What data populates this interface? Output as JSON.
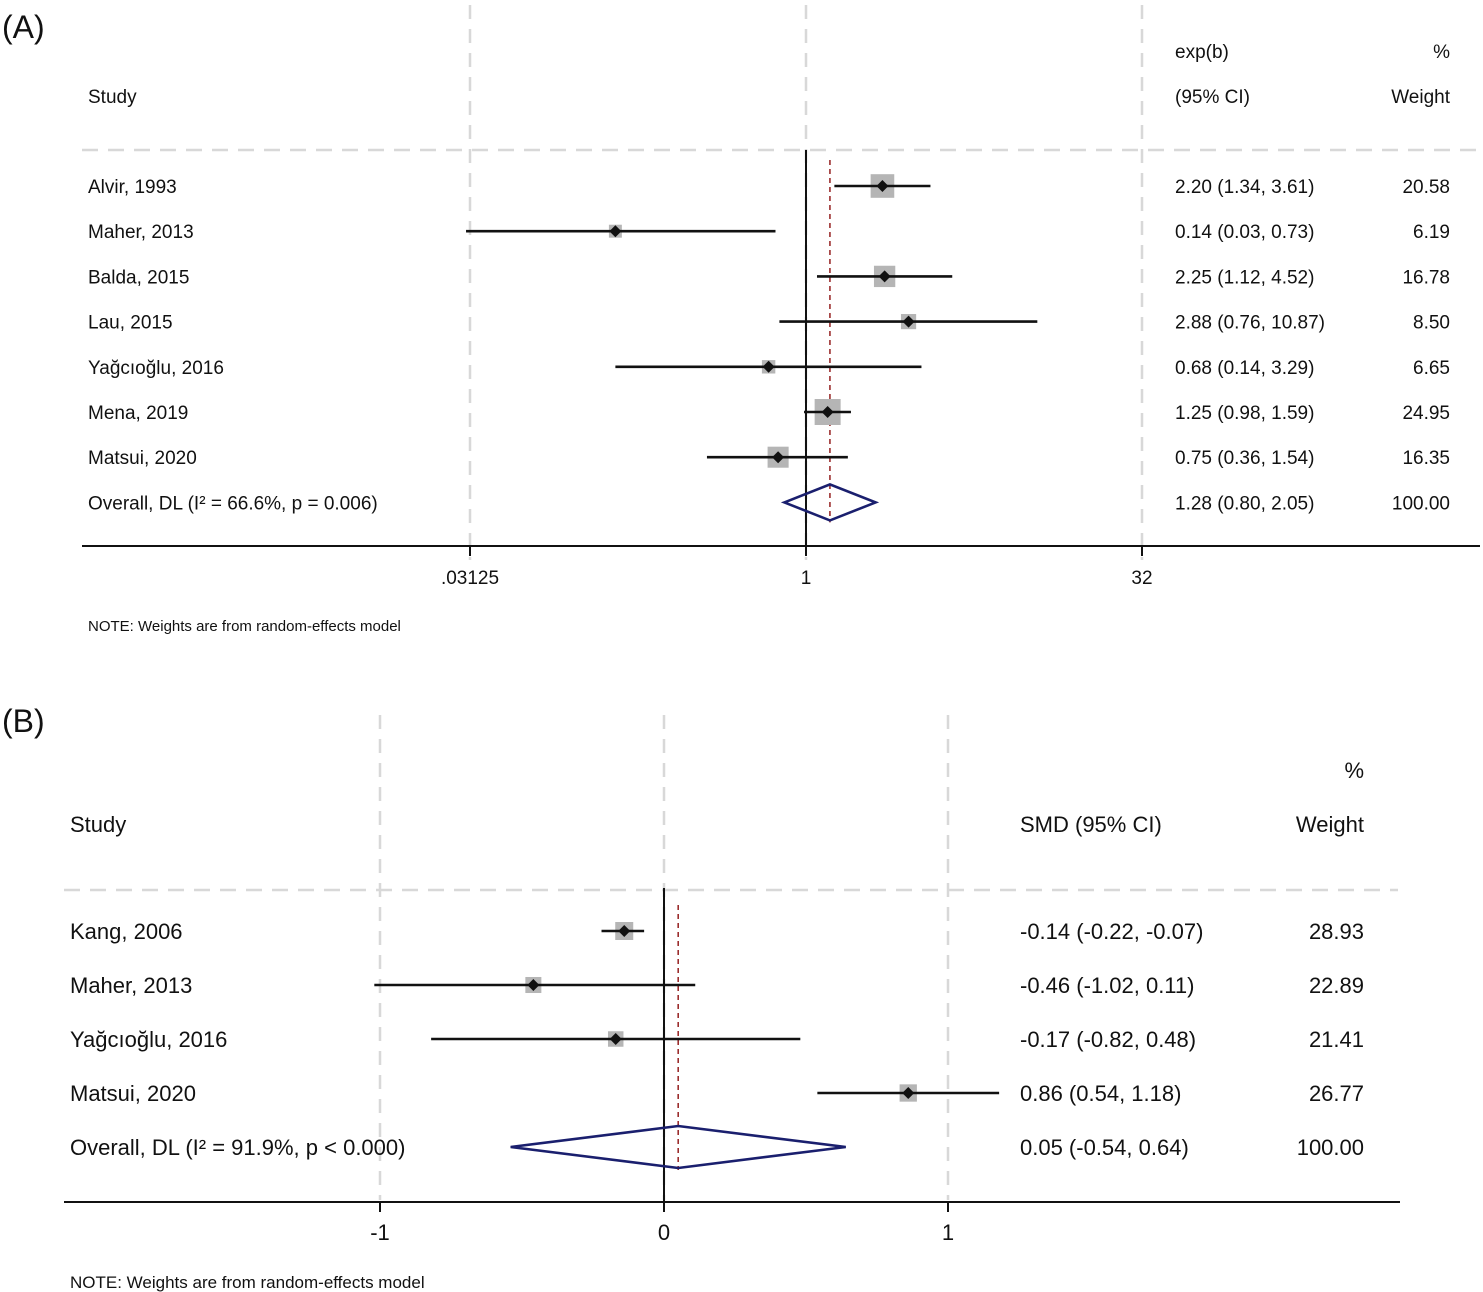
{
  "chart_data": [
    {
      "type": "forest",
      "panel_label": "(A)",
      "headers": {
        "study": "Study",
        "effect_line1": "exp(b)",
        "effect_line2": "(95% CI)",
        "weight_line1": "%",
        "weight_line2": "Weight"
      },
      "scale": "log2",
      "xlim": [
        0.03125,
        32
      ],
      "xticks": [
        {
          "value": 0.03125,
          "label": ".03125"
        },
        {
          "value": 1,
          "label": "1"
        },
        {
          "value": 32,
          "label": "32"
        }
      ],
      "overall_line": 1.28,
      "studies": [
        {
          "name": "Alvir, 1993",
          "est": 2.2,
          "lo": 1.34,
          "hi": 3.61,
          "ci_text": "2.20 (1.34, 3.61)",
          "weight": 20.58,
          "weight_text": "20.58"
        },
        {
          "name": "Maher, 2013",
          "est": 0.14,
          "lo": 0.03,
          "hi": 0.73,
          "ci_text": "0.14 (0.03, 0.73)",
          "weight": 6.19,
          "weight_text": "6.19"
        },
        {
          "name": "Balda, 2015",
          "est": 2.25,
          "lo": 1.12,
          "hi": 4.52,
          "ci_text": "2.25 (1.12, 4.52)",
          "weight": 16.78,
          "weight_text": "16.78"
        },
        {
          "name": "Lau, 2015",
          "est": 2.88,
          "lo": 0.76,
          "hi": 10.87,
          "ci_text": "2.88 (0.76, 10.87)",
          "weight": 8.5,
          "weight_text": "8.50"
        },
        {
          "name": "Yağcıoğlu, 2016",
          "est": 0.68,
          "lo": 0.14,
          "hi": 3.29,
          "ci_text": "0.68 (0.14, 3.29)",
          "weight": 6.65,
          "weight_text": "6.65"
        },
        {
          "name": "Mena, 2019",
          "est": 1.25,
          "lo": 0.98,
          "hi": 1.59,
          "ci_text": "1.25 (0.98, 1.59)",
          "weight": 24.95,
          "weight_text": "24.95"
        },
        {
          "name": "Matsui, 2020",
          "est": 0.75,
          "lo": 0.36,
          "hi": 1.54,
          "ci_text": "0.75 (0.36, 1.54)",
          "weight": 16.35,
          "weight_text": "16.35"
        }
      ],
      "overall": {
        "name": "Overall, DL (I² = 66.6%, p = 0.006)",
        "est": 1.28,
        "lo": 0.8,
        "hi": 2.05,
        "ci_text": "1.28 (0.80, 2.05)",
        "weight_text": "100.00"
      },
      "note": "NOTE: Weights are from random-effects model"
    },
    {
      "type": "forest",
      "panel_label": "(B)",
      "headers": {
        "study": "Study",
        "effect_line1": "",
        "effect_line2": "SMD (95% CI)",
        "weight_line1": "%",
        "weight_line2": "Weight"
      },
      "scale": "linear",
      "xlim": [
        -1,
        1
      ],
      "xticks": [
        {
          "value": -1,
          "label": "-1"
        },
        {
          "value": 0,
          "label": "0"
        },
        {
          "value": 1,
          "label": "1"
        }
      ],
      "overall_line": 0.05,
      "studies": [
        {
          "name": "Kang, 2006",
          "est": -0.14,
          "lo": -0.22,
          "hi": -0.07,
          "ci_text": "-0.14 (-0.22, -0.07)",
          "weight": 28.93,
          "weight_text": "28.93"
        },
        {
          "name": "Maher, 2013",
          "est": -0.46,
          "lo": -1.02,
          "hi": 0.11,
          "ci_text": "-0.46 (-1.02, 0.11)",
          "weight": 22.89,
          "weight_text": "22.89"
        },
        {
          "name": "Yağcıoğlu, 2016",
          "est": -0.17,
          "lo": -0.82,
          "hi": 0.48,
          "ci_text": "-0.17 (-0.82, 0.48)",
          "weight": 21.41,
          "weight_text": "21.41"
        },
        {
          "name": "Matsui, 2020",
          "est": 0.86,
          "lo": 0.54,
          "hi": 1.18,
          "ci_text": "0.86 (0.54, 1.18)",
          "weight": 26.77,
          "weight_text": "26.77"
        }
      ],
      "overall": {
        "name": "Overall, DL (I² = 91.9%, p < 0.000)",
        "est": 0.05,
        "lo": -0.54,
        "hi": 0.64,
        "ci_text": "0.05 (-0.54, 0.64)",
        "weight_text": "100.00"
      },
      "note": "NOTE: Weights are from random-effects model"
    }
  ],
  "colors": {
    "text": "#111111",
    "ci_line": "#111111",
    "weight_box": "#b5b5b5",
    "diamond": "#1a1f6e",
    "overall_line": "#9b2d2d",
    "grid": "#d8d8d8"
  }
}
